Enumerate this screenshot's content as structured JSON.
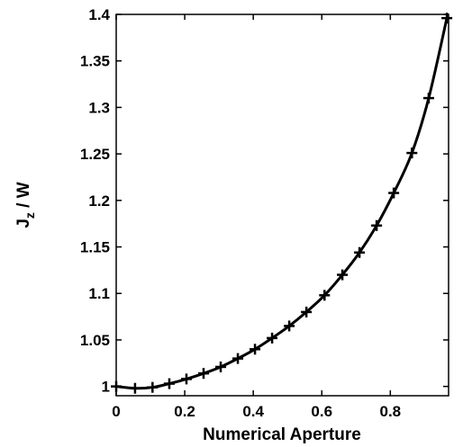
{
  "chart_data": {
    "type": "line",
    "title": "",
    "xlabel": "Numerical Aperture",
    "ylabel_main": "J",
    "ylabel_sub": "z",
    "ylabel_rest": " / W",
    "xlim": [
      0,
      0.97
    ],
    "ylim": [
      0.99,
      1.4
    ],
    "xticks": [
      0,
      0.2,
      0.4,
      0.6,
      0.8
    ],
    "xtick_labels": [
      "0",
      "0.2",
      "0.4",
      "0.6",
      "0.8"
    ],
    "yticks": [
      1,
      1.05,
      1.1,
      1.15,
      1.2,
      1.25,
      1.3,
      1.35,
      1.4
    ],
    "ytick_labels": [
      "1",
      "1.05",
      "1.1",
      "1.15",
      "1.2",
      "1.25",
      "1.3",
      "1.35",
      "1.4"
    ],
    "grid": false,
    "series": [
      {
        "marker": "+",
        "x": [
          0.0,
          0.055,
          0.106,
          0.155,
          0.205,
          0.255,
          0.305,
          0.355,
          0.405,
          0.455,
          0.505,
          0.555,
          0.608,
          0.66,
          0.71,
          0.76,
          0.81,
          0.863,
          0.912,
          0.965
        ],
        "values": [
          1.0,
          0.998,
          0.999,
          1.003,
          1.008,
          1.014,
          1.021,
          1.03,
          1.04,
          1.052,
          1.065,
          1.08,
          1.098,
          1.12,
          1.144,
          1.173,
          1.208,
          1.251,
          1.31,
          1.396
        ]
      }
    ]
  }
}
